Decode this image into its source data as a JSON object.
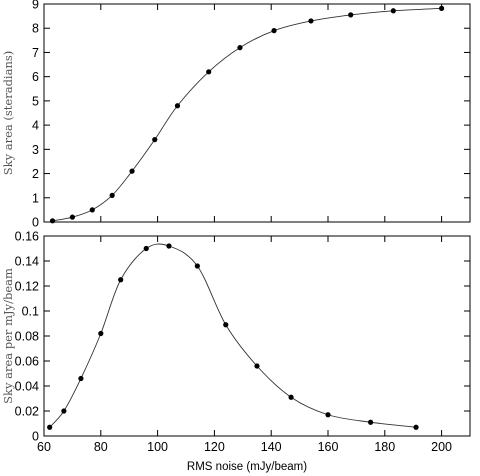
{
  "chart_data": [
    {
      "type": "line",
      "title": "",
      "xlabel": "",
      "ylabel": "Sky area (steradians)",
      "xlim": [
        60,
        210
      ],
      "ylim": [
        0,
        9
      ],
      "xticks": [
        60,
        80,
        100,
        120,
        140,
        160,
        180,
        200
      ],
      "yticks": [
        0,
        1,
        2,
        3,
        4,
        5,
        6,
        7,
        8,
        9
      ],
      "x_tick_labels": false,
      "series": [
        {
          "x": [
            63,
            70,
            77,
            84,
            91,
            99,
            107,
            118,
            129,
            141,
            154,
            168,
            183,
            200
          ],
          "y": [
            0.05,
            0.2,
            0.5,
            1.1,
            2.1,
            3.4,
            4.8,
            6.2,
            7.2,
            7.9,
            8.3,
            8.55,
            8.72,
            8.82
          ]
        }
      ],
      "markers": "filled-circle",
      "grid": false
    },
    {
      "type": "line",
      "title": "",
      "xlabel": "RMS noise (mJy/beam)",
      "ylabel": "Sky area per mJy/beam",
      "xlim": [
        60,
        210
      ],
      "ylim": [
        0,
        0.16
      ],
      "xticks": [
        60,
        80,
        100,
        120,
        140,
        160,
        180,
        200
      ],
      "yticks": [
        0,
        0.02,
        0.04,
        0.06,
        0.08,
        0.1,
        0.12,
        0.14,
        0.16
      ],
      "ytick_labels": [
        "0",
        "0.02",
        "0.04",
        "0.06",
        "0.08",
        "0.1",
        "0.12",
        "0.14",
        "0.16"
      ],
      "x_tick_labels": true,
      "series": [
        {
          "x": [
            62,
            67,
            73,
            80,
            87,
            96,
            104,
            114,
            124,
            135,
            147,
            160,
            175,
            191
          ],
          "y": [
            0.007,
            0.02,
            0.046,
            0.082,
            0.125,
            0.15,
            0.152,
            0.136,
            0.089,
            0.056,
            0.031,
            0.017,
            0.011,
            0.007
          ]
        }
      ],
      "markers": "filled-circle",
      "grid": false
    }
  ]
}
